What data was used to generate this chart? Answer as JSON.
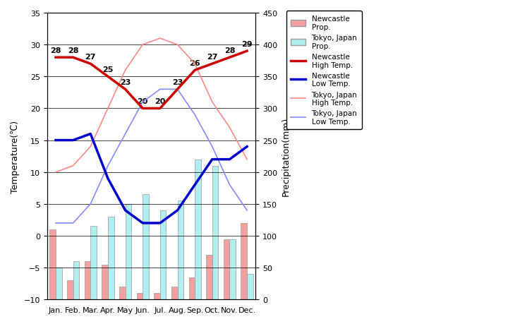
{
  "months": [
    "Jan.",
    "Feb.",
    "Mar.",
    "Apr.",
    "May",
    "Jun.",
    "Jul.",
    "Aug.",
    "Sep.",
    "Oct.",
    "Nov.",
    "Dec."
  ],
  "newcastle_precip": [
    110,
    30,
    60,
    55,
    20,
    10,
    10,
    20,
    35,
    70,
    95,
    120
  ],
  "tokyo_precip": [
    50,
    60,
    115,
    130,
    150,
    165,
    140,
    155,
    220,
    210,
    95,
    40
  ],
  "newcastle_high": [
    28,
    28,
    27,
    25,
    23,
    20,
    20,
    23,
    26,
    27,
    28,
    29
  ],
  "newcastle_low": [
    15,
    15,
    16,
    9,
    4,
    2,
    2,
    4,
    8,
    12,
    12,
    14
  ],
  "tokyo_high": [
    10,
    11,
    14,
    20,
    26,
    30,
    31,
    30,
    27,
    21,
    17,
    12
  ],
  "tokyo_low": [
    2,
    2,
    5,
    11,
    16,
    21,
    23,
    23,
    19,
    14,
    8,
    4
  ],
  "newcastle_high_labels": [
    28,
    28,
    27,
    25,
    23,
    20,
    20,
    23,
    26,
    27,
    28,
    29
  ],
  "temp_ylim": [
    -10,
    35
  ],
  "precip_ylim": [
    0,
    450
  ],
  "temp_yticks": [
    -10,
    -5,
    0,
    5,
    10,
    15,
    20,
    25,
    30,
    35
  ],
  "precip_yticks": [
    0,
    50,
    100,
    150,
    200,
    250,
    300,
    350,
    400,
    450
  ],
  "newcastle_bar_color": "#F4A0A0",
  "tokyo_bar_color": "#B0EEF0",
  "newcastle_high_color": "#CC0000",
  "newcastle_low_color": "#0000CC",
  "tokyo_high_color": "#FF8888",
  "tokyo_low_color": "#8888FF",
  "bg_color": "#C8C8C8",
  "left_ylabel": "Temperature(℃)",
  "right_ylabel": "Precipitation(mm)",
  "grid_color": "#000000"
}
